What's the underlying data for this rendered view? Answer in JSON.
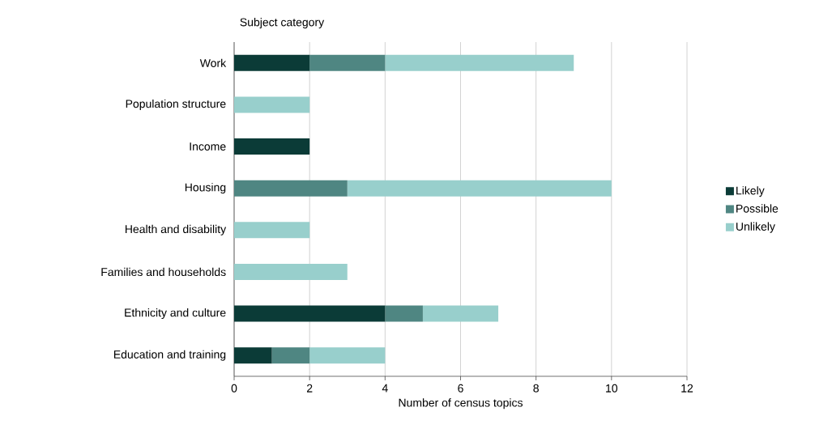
{
  "chart_data": {
    "type": "bar",
    "orientation": "horizontal",
    "stacked": true,
    "ylabel": "Subject category",
    "xlabel": "Number of census topics",
    "categories": [
      "Work",
      "Population structure",
      "Income",
      "Housing",
      "Health and disability",
      "Families and households",
      "Ethnicity and culture",
      "Education and training"
    ],
    "series": [
      {
        "name": "Likely",
        "color": "#0b3b37",
        "values": [
          2,
          0,
          2,
          0,
          0,
          0,
          4,
          1
        ]
      },
      {
        "name": "Possible",
        "color": "#4f8682",
        "values": [
          2,
          0,
          0,
          3,
          0,
          0,
          1,
          1
        ]
      },
      {
        "name": "Unlikely",
        "color": "#98cfcc",
        "values": [
          5,
          2,
          0,
          7,
          2,
          3,
          2,
          2
        ]
      }
    ],
    "xlim": [
      0,
      12
    ],
    "xticks": [
      0,
      2,
      4,
      6,
      8,
      10,
      12
    ],
    "grid": "x",
    "legend": "right"
  }
}
